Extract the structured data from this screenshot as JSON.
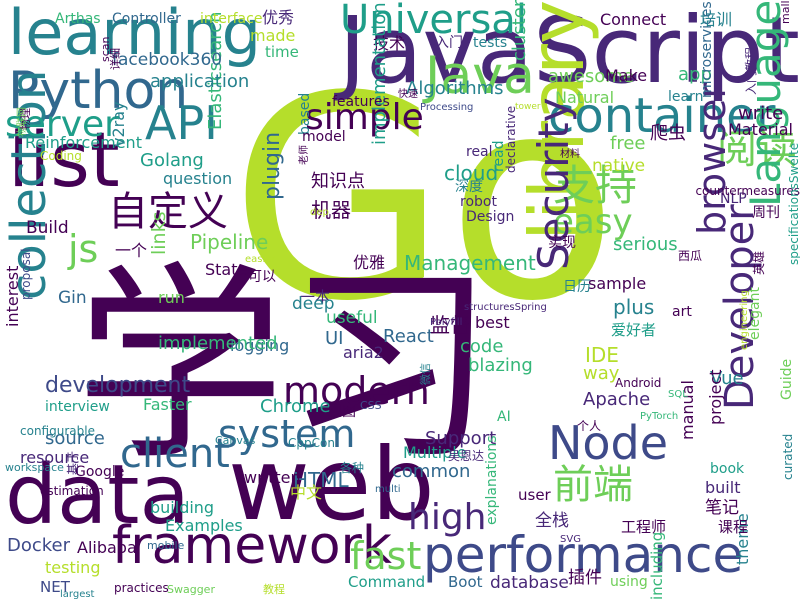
{
  "colors": {
    "background": "#ffffff",
    "palette": [
      "#440154",
      "#482878",
      "#3e4a89",
      "#31688e",
      "#26828e",
      "#1f9e89",
      "#35b779",
      "#6ece58",
      "#b5de2b",
      "#fde725"
    ]
  },
  "words": [
    "Go",
    "学习",
    "web",
    "JavaScript",
    "library",
    "learning",
    "data",
    "list",
    "framework",
    "performance",
    "Java",
    "container",
    "Python",
    "Node",
    "Universal",
    "支持",
    "阅读",
    "自定义",
    "前端",
    "easy",
    "simple",
    "API",
    "modern",
    "client",
    "system",
    "collection",
    "Security",
    "Language",
    "browser",
    "Developer",
    "high",
    "fast",
    "server",
    "js",
    "development",
    "Docker",
    "Vue",
    "HTML",
    "React",
    "Golang",
    "Elasticsearch",
    "cloud",
    "plugin",
    "Pipeline",
    "Management",
    "Chrome",
    "Algorithms",
    "awesome",
    "application",
    "facebook360",
    "技术",
    "入门",
    "tests",
    "cluster",
    "Make",
    "app",
    "learn",
    "Natural",
    "Material",
    "write",
    "free",
    "爬虫",
    "native",
    "microservices",
    "周刊",
    "NLP",
    "Reinforcement",
    "question",
    "v2ray",
    "知识点",
    "机器",
    "深度",
    "read",
    "robot",
    "Design",
    "declarative",
    "implementation",
    "based",
    "model",
    "features",
    "real",
    "Build",
    "一个",
    "实现",
    "serious",
    "links",
    "State",
    "run",
    "可以",
    "一本",
    "deep",
    "useful",
    "监督",
    "best",
    "爱好者",
    "IDE",
    "plus",
    "art",
    "sample",
    "UI",
    "logging",
    "implemented",
    "aria2",
    "code",
    "blazing",
    "way",
    "Apache",
    "Support",
    "source",
    "resource",
    "Google",
    "interview",
    "Faster",
    "视图",
    "CSS",
    "个人",
    "AI",
    "manual",
    "project",
    "Guide",
    "book",
    "built",
    "theme",
    "curated",
    "笔记",
    "课程",
    "工程师",
    "插件",
    "including",
    "using",
    "Boot",
    "database",
    "Command",
    "NET",
    "practices",
    "Swagger",
    "教程",
    "Alibaba",
    "mobile",
    "testing",
    "Examples",
    "building",
    "全栈",
    "user",
    "common",
    "Multiple",
    "吴恩达",
    "written",
    "中文",
    "优雅",
    "Gin",
    "基于",
    "interest",
    "configurable",
    "workspace",
    "Canvas",
    "CppCon",
    "各种",
    "multi",
    "estimation",
    "SVG",
    "explanations",
    "structuresSpring",
    "Polyfill",
    "tower",
    "Processing",
    "engineering",
    "PyTorch",
    "SQL",
    "Android",
    "Arthas",
    "Controller",
    "interface",
    "Connect",
    "培训",
    "mall",
    "made",
    "time",
    "优秀",
    "scan",
    "详细",
    "日历",
    "西瓜",
    "英雄",
    "快速",
    "countermeasures",
    "specificationsSwelte",
    "elegant",
    "proposal",
    "largest",
    "easier",
    "dep",
    "Coding",
    "物理",
    "老师",
    "材料",
    "入门教程",
    "物联网",
    "微信"
  ]
}
